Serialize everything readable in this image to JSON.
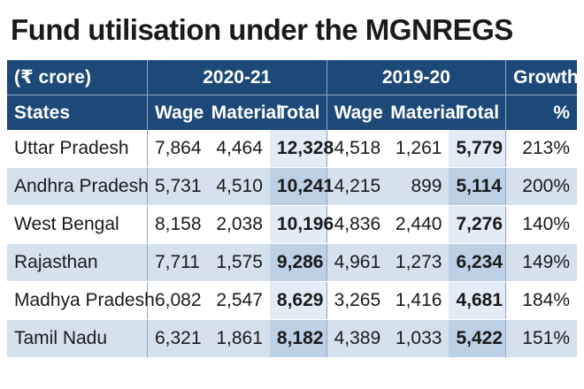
{
  "title": "Fund utilisation under the MGNREGS",
  "header": {
    "unit": "(₹ crore)",
    "states": "States",
    "period_a": "2020-21",
    "period_b": "2019-20",
    "growth": "Growth",
    "growth_unit": "%",
    "wage": "Wage",
    "material": "Material",
    "total": "Total"
  },
  "rows": [
    {
      "state": "Uttar Pradesh",
      "wage_a": "7,864",
      "material_a": "4,464",
      "total_a": "12,328",
      "wage_b": "4,518",
      "material_b": "1,261",
      "total_b": "5,779",
      "growth": "213%"
    },
    {
      "state": "Andhra Pradesh",
      "wage_a": "5,731",
      "material_a": "4,510",
      "total_a": "10,241",
      "wage_b": "4,215",
      "material_b": "899",
      "total_b": "5,114",
      "growth": "200%"
    },
    {
      "state": "West Bengal",
      "wage_a": "8,158",
      "material_a": "2,038",
      "total_a": "10,196",
      "wage_b": "4,836",
      "material_b": "2,440",
      "total_b": "7,276",
      "growth": "140%"
    },
    {
      "state": "Rajasthan",
      "wage_a": "7,711",
      "material_a": "1,575",
      "total_a": "9,286",
      "wage_b": "4,961",
      "material_b": "1,273",
      "total_b": "6,234",
      "growth": "149%"
    },
    {
      "state": "Madhya Pradesh",
      "wage_a": "6,082",
      "material_a": "2,547",
      "total_a": "8,629",
      "wage_b": "3,265",
      "material_b": "1,416",
      "total_b": "4,681",
      "growth": "184%"
    },
    {
      "state": "Tamil Nadu",
      "wage_a": "6,321",
      "material_a": "1,861",
      "total_a": "8,182",
      "wage_b": "4,389",
      "material_b": "1,033",
      "total_b": "5,422",
      "growth": "151%"
    }
  ],
  "colors": {
    "header_bg": "#1d4978",
    "row_alt": "#d6e1ee",
    "total_col": "#bdd0e6"
  }
}
